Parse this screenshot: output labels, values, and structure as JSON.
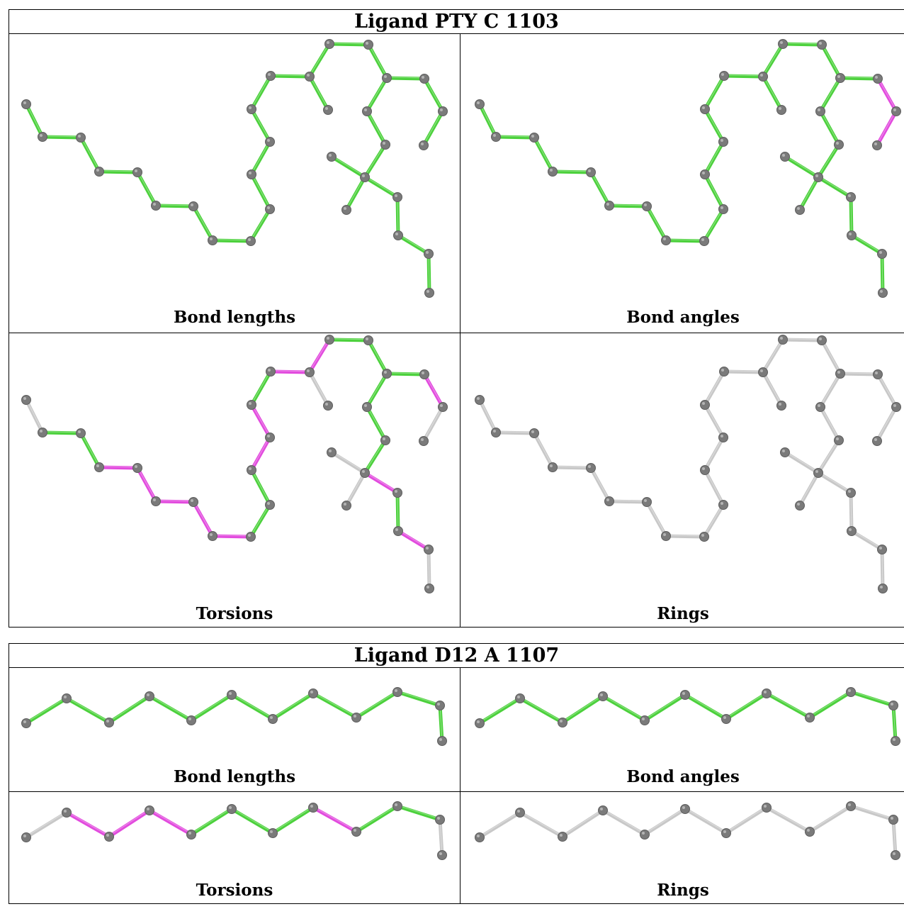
{
  "colors": {
    "ok": "#4cd13c",
    "outlier": "#e24bde",
    "none": "#c8c8c8",
    "atom": "#7a7a7a"
  },
  "ligands": [
    {
      "title": "Ligand PTY C 1103",
      "panels": [
        {
          "label": "Bond lengths",
          "mode": "bond_lengths"
        },
        {
          "label": "Bond angles",
          "mode": "bond_angles"
        },
        {
          "label": "Torsions",
          "mode": "torsions"
        },
        {
          "label": "Rings",
          "mode": "rings"
        }
      ]
    },
    {
      "title": "Ligand D12 A 1107",
      "panels": [
        {
          "label": "Bond lengths",
          "mode": "bond_lengths"
        },
        {
          "label": "Bond angles",
          "mode": "bond_angles"
        },
        {
          "label": "Torsions",
          "mode": "torsions"
        },
        {
          "label": "Rings",
          "mode": "rings"
        }
      ]
    }
  ]
}
